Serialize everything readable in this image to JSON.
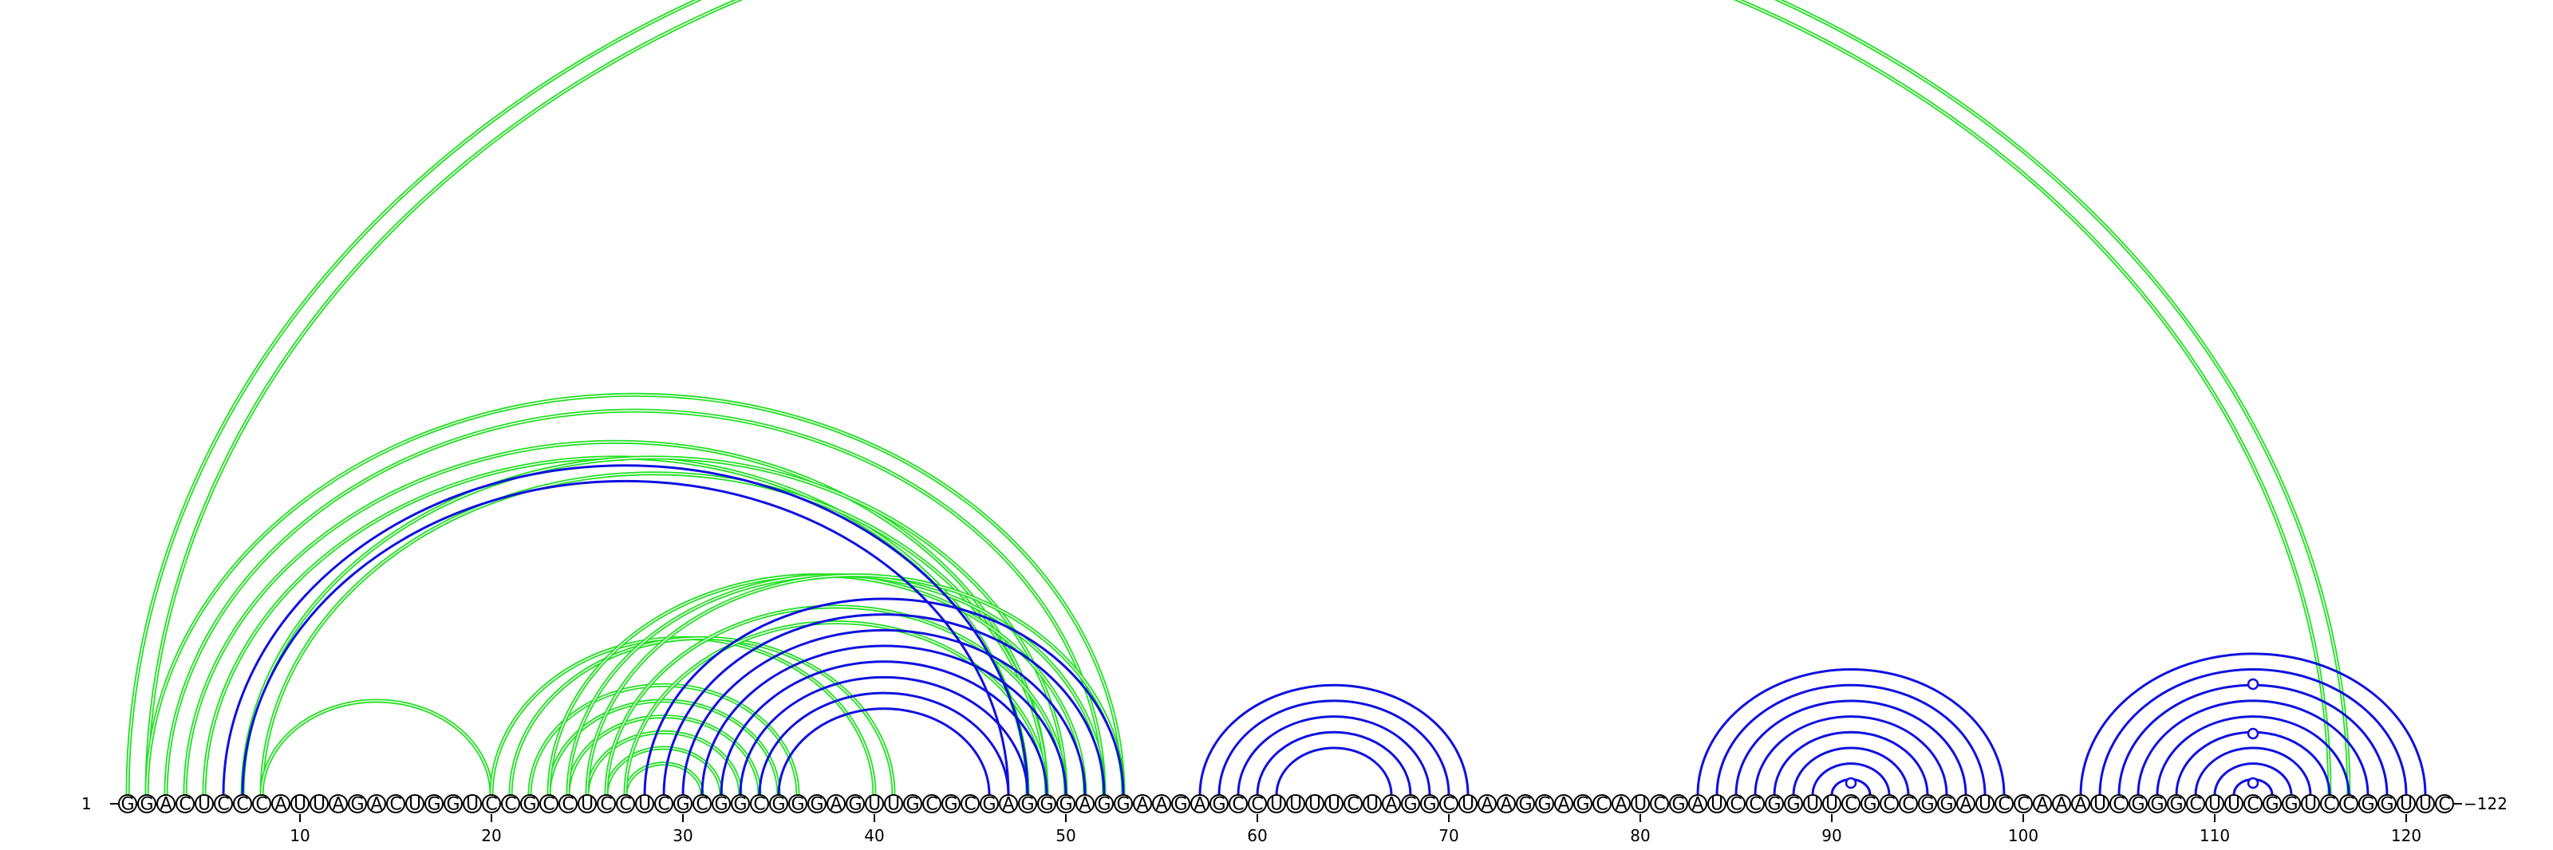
{
  "chart_data": {
    "type": "arc-diagram",
    "sequence": "GGACUCCCAUUAGACUGGUCCGCCUCCUCGCGGCGGGAGUUGCGCGAGGGAGGAAGAGCCUUUUCUAGGCUAAGGAGCAUCGAUCCGGUUCGCCGGAUCCAAAUCGGGCUUCGGUCCGGUUC",
    "start_label": "1",
    "end_label": "122",
    "tick_labels": [
      "10",
      "20",
      "30",
      "40",
      "50",
      "60",
      "70",
      "80",
      "90",
      "100",
      "110",
      "120"
    ],
    "tick_positions": [
      10,
      20,
      30,
      40,
      50,
      60,
      70,
      80,
      90,
      100,
      110,
      120
    ],
    "colors": {
      "blue": "#1010e0",
      "green": "#22e022"
    },
    "blue_pairs": [
      [
        6,
        48
      ],
      [
        7,
        47
      ],
      [
        28,
        53
      ],
      [
        29,
        52
      ],
      [
        30,
        51
      ],
      [
        31,
        50
      ],
      [
        32,
        49
      ],
      [
        33,
        48
      ],
      [
        34,
        47
      ],
      [
        35,
        46
      ],
      [
        57,
        71
      ],
      [
        58,
        70
      ],
      [
        59,
        69
      ],
      [
        60,
        68
      ],
      [
        61,
        67
      ],
      [
        83,
        99
      ],
      [
        84,
        98
      ],
      [
        85,
        97
      ],
      [
        86,
        96
      ],
      [
        87,
        95
      ],
      [
        88,
        94
      ],
      [
        89,
        93
      ],
      [
        90,
        92
      ],
      [
        103,
        121
      ],
      [
        104,
        120
      ],
      [
        105,
        119
      ],
      [
        106,
        118
      ],
      [
        107,
        117
      ],
      [
        108,
        116
      ],
      [
        109,
        115
      ],
      [
        110,
        114
      ],
      [
        111,
        113
      ]
    ],
    "green_pairs": [
      [
        1,
        117
      ],
      [
        2,
        116
      ],
      [
        2,
        53
      ],
      [
        3,
        52
      ],
      [
        4,
        49
      ],
      [
        5,
        48
      ],
      [
        7,
        50
      ],
      [
        8,
        49
      ],
      [
        8,
        20
      ],
      [
        20,
        40
      ],
      [
        21,
        41
      ],
      [
        22,
        36
      ],
      [
        23,
        35
      ],
      [
        24,
        34
      ],
      [
        25,
        33
      ],
      [
        26,
        32
      ],
      [
        27,
        31
      ],
      [
        23,
        51
      ],
      [
        24,
        52
      ],
      [
        25,
        53
      ],
      [
        26,
        50
      ],
      [
        27,
        49
      ]
    ],
    "hairpin_markers": [
      91,
      112
    ]
  }
}
